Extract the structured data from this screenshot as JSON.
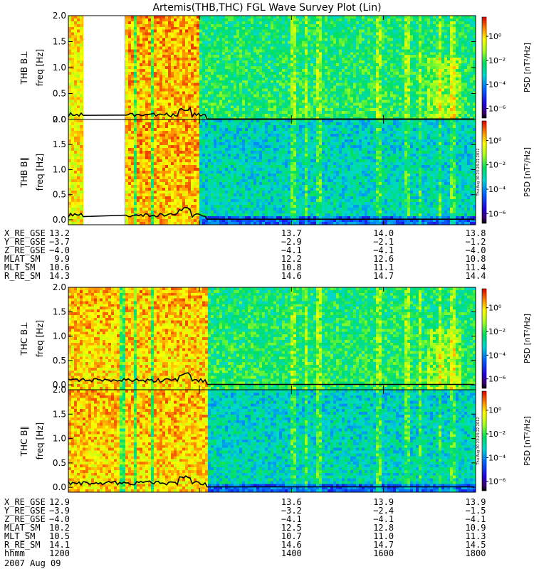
{
  "chart_data": {
    "type": "heatmap",
    "title": "Artemis(THB,THC) FGL Wave Survey Plot (Lin)",
    "colorscale": "rainbow",
    "ticks_hhmm": [
      "1200",
      "1400",
      "1600",
      "1800"
    ],
    "panels": [
      {
        "id": "thb-bperp",
        "probe": "THB",
        "ylabel_1": "THB B⊥",
        "ylabel_2": "freq [Hz]",
        "ylim": [
          0.0,
          2.0
        ],
        "yticks": [
          "0.0",
          "0.5",
          "1.0",
          "1.5",
          "2.0"
        ],
        "data_gap": [
          "1120",
          "1200"
        ],
        "colorbar": {
          "label": "PSD [nT²/Hz]",
          "log_range": [
            -6.8,
            1.6
          ],
          "ticks": [
            {
              "log": 0,
              "label": "10⁰"
            },
            {
              "log": -2,
              "label": "10⁻²"
            },
            {
              "log": -4,
              "label": "10⁻⁴"
            },
            {
              "log": -6,
              "label": "10⁻⁶"
            }
          ]
        },
        "stamp": ""
      },
      {
        "id": "thb-bpar",
        "probe": "THB",
        "ylabel_1": "THB B∥",
        "ylabel_2": "freq [Hz]",
        "ylim": [
          -0.1,
          2.0
        ],
        "yticks": [
          "0.0",
          "0.5",
          "1.0",
          "1.5",
          "2.0"
        ],
        "data_gap": [
          "1120",
          "1200"
        ],
        "colorbar": {
          "label": "PSD [nT²/Hz]",
          "log_range": [
            -6.8,
            1.6
          ],
          "ticks": [
            {
              "log": 0,
              "label": "10⁰"
            },
            {
              "log": -2,
              "label": "10⁻²"
            },
            {
              "log": -4,
              "label": "10⁻⁴"
            },
            {
              "log": -6,
              "label": "10⁻⁶"
            }
          ]
        },
        "stamp": "Thu Aug 30 23:24:21 2012"
      },
      {
        "id": "thc-bperp",
        "probe": "THC",
        "ylabel_1": "THC B⊥",
        "ylabel_2": "freq [Hz]",
        "ylim": [
          -0.1,
          2.0
        ],
        "yticks": [
          "0.0",
          "0.5",
          "1.0",
          "1.5",
          "2.0"
        ],
        "data_gap": null,
        "colorbar": {
          "label": "PSD [nT²/Hz]",
          "log_range": [
            -6.8,
            1.6
          ],
          "ticks": [
            {
              "log": 0,
              "label": "10⁰"
            },
            {
              "log": -2,
              "label": "10⁻²"
            },
            {
              "log": -4,
              "label": "10⁻⁴"
            },
            {
              "log": -6,
              "label": "10⁻⁶"
            }
          ]
        },
        "stamp": ""
      },
      {
        "id": "thc-bpar",
        "probe": "THC",
        "ylabel_1": "THC B∥",
        "ylabel_2": "freq [Hz]",
        "ylim": [
          -0.1,
          2.0
        ],
        "yticks": [
          "0.0",
          "0.5",
          "1.0",
          "1.5",
          "2.0"
        ],
        "data_gap": null,
        "colorbar": {
          "label": "PSD [nT²/Hz]",
          "log_range": [
            -6.8,
            1.6
          ],
          "ticks": [
            {
              "log": 0,
              "label": "10⁰"
            },
            {
              "log": -2,
              "label": "10⁻²"
            },
            {
              "log": -4,
              "label": "10⁻⁴"
            },
            {
              "log": -6,
              "label": "10⁻⁶"
            }
          ]
        },
        "stamp": "Thu Aug 30 23:24:22 2012"
      }
    ],
    "ephemeris": [
      {
        "probe": "THB",
        "rows": [
          {
            "label": "X_RE_GSE",
            "values": [
              "13.2",
              "13.7",
              "14.0",
              "13.8"
            ]
          },
          {
            "label": "Y_RE_GSE",
            "values": [
              "−3.7",
              "−2.9",
              "−2.1",
              "−1.2"
            ]
          },
          {
            "label": "Z_RE_GSE",
            "values": [
              "−4.0",
              "−4.1",
              "−4.1",
              "−4.0"
            ]
          },
          {
            "label": "MLAT_SM",
            "values": [
              "9.9",
              "12.2",
              "12.6",
              "10.8"
            ]
          },
          {
            "label": "MLT_SM",
            "values": [
              "10.6",
              "10.8",
              "11.1",
              "11.4"
            ]
          },
          {
            "label": "R_RE_SM",
            "values": [
              "14.3",
              "14.6",
              "14.7",
              "14.4"
            ]
          }
        ]
      },
      {
        "probe": "THC",
        "rows": [
          {
            "label": "X_RE_GSE",
            "values": [
              "12.9",
              "13.6",
              "13.9",
              "13.9"
            ]
          },
          {
            "label": "Y_RE_GSE",
            "values": [
              "−3.9",
              "−3.2",
              "−2.4",
              "−1.5"
            ]
          },
          {
            "label": "Z_RE_GSE",
            "values": [
              "−4.0",
              "−4.1",
              "−4.1",
              "−4.1"
            ]
          },
          {
            "label": "MLAT_SM",
            "values": [
              "10.2",
              "12.5",
              "12.8",
              "10.9"
            ]
          },
          {
            "label": "MLT_SM",
            "values": [
              "10.5",
              "10.7",
              "11.0",
              "11.3"
            ]
          },
          {
            "label": "R_RE_SM",
            "values": [
              "14.1",
              "14.6",
              "14.7",
              "14.5"
            ]
          }
        ]
      }
    ],
    "time_axis": {
      "label": "hhmm",
      "values": [
        "1200",
        "1400",
        "1600",
        "1800"
      ]
    },
    "date": "2007 Aug 09"
  }
}
